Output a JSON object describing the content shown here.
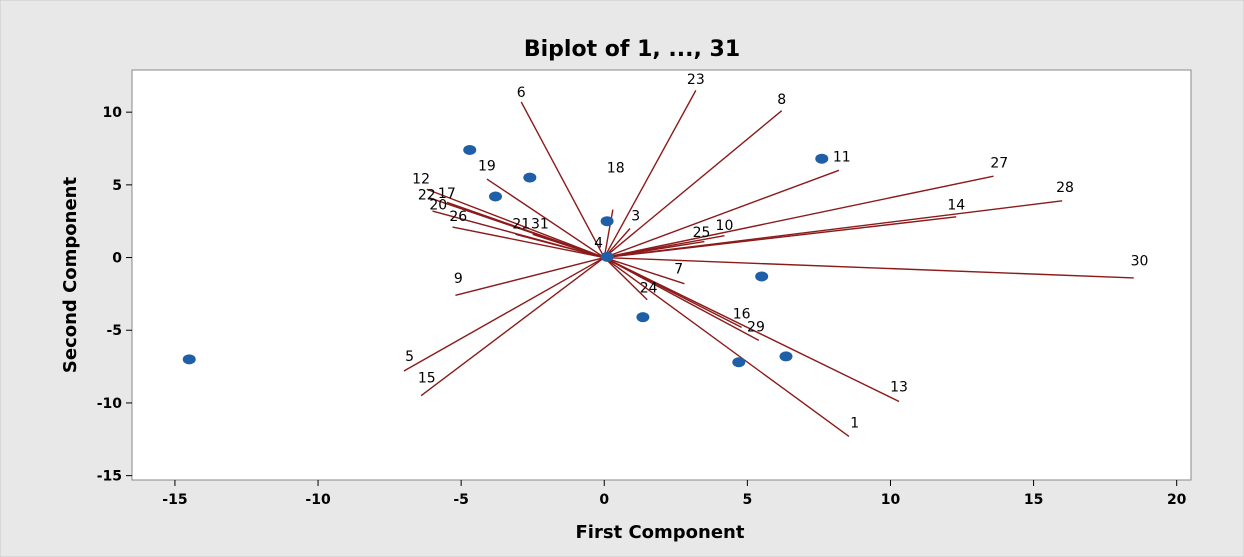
{
  "chart_data": {
    "type": "scatter",
    "title": "Biplot of 1, ..., 31",
    "xlabel": "First Component",
    "ylabel": "Second Component",
    "xlim": [
      -16.5,
      20.5
    ],
    "ylim": [
      -15.3,
      12.9
    ],
    "x_ticks": [
      -15,
      -10,
      -5,
      0,
      5,
      10,
      15,
      20
    ],
    "y_ticks": [
      -15,
      -10,
      -5,
      0,
      5,
      10
    ],
    "grid": false,
    "colors": {
      "outer_background": "#e8e8e8",
      "plot_background": "#ffffff",
      "points": "#1f5fa8",
      "vectors": "#8b1a1a"
    },
    "points": [
      {
        "x": -14.5,
        "y": -7.0
      },
      {
        "x": -4.7,
        "y": 7.4
      },
      {
        "x": -3.8,
        "y": 4.2
      },
      {
        "x": -2.6,
        "y": 5.5
      },
      {
        "x": 0.1,
        "y": 2.5
      },
      {
        "x": 0.1,
        "y": 0.05
      },
      {
        "x": 1.35,
        "y": -4.1
      },
      {
        "x": 4.7,
        "y": -7.2
      },
      {
        "x": 5.5,
        "y": -1.3
      },
      {
        "x": 6.35,
        "y": -6.8
      },
      {
        "x": 7.6,
        "y": 6.8
      }
    ],
    "vectors": [
      {
        "label": "1",
        "x": 8.55,
        "y": -12.3
      },
      {
        "label": "3",
        "x": 0.9,
        "y": 2.0
      },
      {
        "label": "4",
        "x": -0.3,
        "y": 0.2
      },
      {
        "label": "5",
        "x": -7.0,
        "y": -7.8
      },
      {
        "label": "6",
        "x": -2.9,
        "y": 10.7
      },
      {
        "label": "7",
        "x": 2.8,
        "y": -1.8
      },
      {
        "label": "8",
        "x": 6.2,
        "y": 10.1
      },
      {
        "label": "9",
        "x": -5.2,
        "y": -2.6
      },
      {
        "label": "10",
        "x": 4.2,
        "y": 1.5
      },
      {
        "label": "11",
        "x": 8.2,
        "y": 6.0
      },
      {
        "label": "12",
        "x": -6.2,
        "y": 4.7
      },
      {
        "label": "13",
        "x": 10.3,
        "y": -9.9
      },
      {
        "label": "14",
        "x": 12.3,
        "y": 2.8
      },
      {
        "label": "15",
        "x": -6.4,
        "y": -9.5
      },
      {
        "label": "16",
        "x": 4.8,
        "y": -4.8
      },
      {
        "label": "17",
        "x": -5.5,
        "y": 3.8
      },
      {
        "label": "18",
        "x": 0.3,
        "y": 3.3
      },
      {
        "label": "19",
        "x": -4.1,
        "y": 5.4
      },
      {
        "label": "20",
        "x": -6.0,
        "y": 3.2
      },
      {
        "label": "21",
        "x": -3.1,
        "y": 1.6
      },
      {
        "label": "22",
        "x": -6.1,
        "y": 4.1
      },
      {
        "label": "23",
        "x": 3.2,
        "y": 11.5
      },
      {
        "label": "24",
        "x": 1.5,
        "y": -2.9
      },
      {
        "label": "25",
        "x": 3.5,
        "y": 1.1
      },
      {
        "label": "26",
        "x": -5.3,
        "y": 2.1
      },
      {
        "label": "27",
        "x": 13.6,
        "y": 5.6
      },
      {
        "label": "28",
        "x": 16.0,
        "y": 3.9
      },
      {
        "label": "29",
        "x": 5.4,
        "y": -5.7
      },
      {
        "label": "30",
        "x": 18.5,
        "y": -1.4
      },
      {
        "label": "31",
        "x": -2.5,
        "y": 1.6
      }
    ],
    "vector_labels": [
      {
        "text": "1",
        "x": 8.75,
        "y": -11.7
      },
      {
        "text": "3",
        "x": 1.1,
        "y": 2.55
      },
      {
        "text": "4",
        "x": -0.2,
        "y": 0.7
      },
      {
        "text": "5",
        "x": -6.8,
        "y": -7.1
      },
      {
        "text": "6",
        "x": -2.9,
        "y": 11.05
      },
      {
        "text": "7",
        "x": 2.6,
        "y": -1.1
      },
      {
        "text": "8",
        "x": 6.2,
        "y": 10.55
      },
      {
        "text": "9",
        "x": -5.1,
        "y": -1.75
      },
      {
        "text": "10",
        "x": 4.2,
        "y": 1.9
      },
      {
        "text": "11",
        "x": 8.3,
        "y": 6.6
      },
      {
        "text": "12",
        "x": -6.4,
        "y": 5.1
      },
      {
        "text": "13",
        "x": 10.3,
        "y": -9.2
      },
      {
        "text": "14",
        "x": 12.3,
        "y": 3.3
      },
      {
        "text": "15",
        "x": -6.2,
        "y": -8.6
      },
      {
        "text": "16",
        "x": 4.8,
        "y": -4.2
      },
      {
        "text": "17",
        "x": -5.5,
        "y": 4.1
      },
      {
        "text": "18",
        "x": 0.4,
        "y": 5.85
      },
      {
        "text": "19",
        "x": -4.1,
        "y": 6.0
      },
      {
        "text": "20",
        "x": -5.8,
        "y": 3.3
      },
      {
        "text": "21",
        "x": -2.9,
        "y": 2.0
      },
      {
        "text": "22",
        "x": -6.2,
        "y": 4.0
      },
      {
        "text": "23",
        "x": 3.2,
        "y": 11.95
      },
      {
        "text": "24",
        "x": 1.55,
        "y": -2.4
      },
      {
        "text": "25",
        "x": 3.4,
        "y": 1.4
      },
      {
        "text": "26",
        "x": -5.1,
        "y": 2.5
      },
      {
        "text": "27",
        "x": 13.8,
        "y": 6.2
      },
      {
        "text": "28",
        "x": 16.1,
        "y": 4.5
      },
      {
        "text": "29",
        "x": 5.3,
        "y": -5.1
      },
      {
        "text": "30",
        "x": 18.7,
        "y": -0.55
      },
      {
        "text": "31",
        "x": -2.25,
        "y": 2.0
      }
    ]
  }
}
